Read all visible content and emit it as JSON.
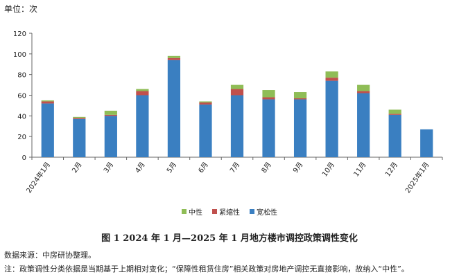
{
  "chart_data": {
    "type": "bar",
    "stacked": true,
    "unit_label": "单位：次",
    "categories": [
      "2024年1月",
      "2月",
      "3月",
      "4月",
      "5月",
      "6月",
      "7月",
      "8月",
      "9月",
      "10月",
      "11月",
      "12月",
      "2025年1月"
    ],
    "series": [
      {
        "name": "宽松性",
        "color": "#3a7fc1",
        "values": [
          52,
          37,
          40,
          60,
          94,
          51,
          60,
          56,
          56,
          74,
          62,
          41,
          27
        ]
      },
      {
        "name": "紧缩性",
        "color": "#c0504d",
        "values": [
          2,
          1,
          1,
          4,
          2,
          2,
          6,
          2,
          1,
          3,
          2,
          1,
          0
        ]
      },
      {
        "name": "中性",
        "color": "#8fbd56",
        "values": [
          1,
          1,
          4,
          2,
          2,
          1,
          4,
          7,
          6,
          6,
          6,
          4,
          0
        ]
      }
    ],
    "legend_order": [
      "中性",
      "紧缩性",
      "宽松性"
    ],
    "yticks": [
      0,
      20,
      40,
      60,
      80,
      100,
      120
    ],
    "ylim": [
      0,
      120
    ],
    "grid": false,
    "legend_position": "bottom"
  },
  "caption": "图 1  2024 年 1 月—2025 年 1 月地方楼市调控政策调性变化",
  "source": "数据来源：中房研协整理。",
  "note": "注：政策调性分类依据是当期基于上期相对变化；“保障性租赁住房”相关政策对房地产调控无直接影响，故纳入“中性”。"
}
